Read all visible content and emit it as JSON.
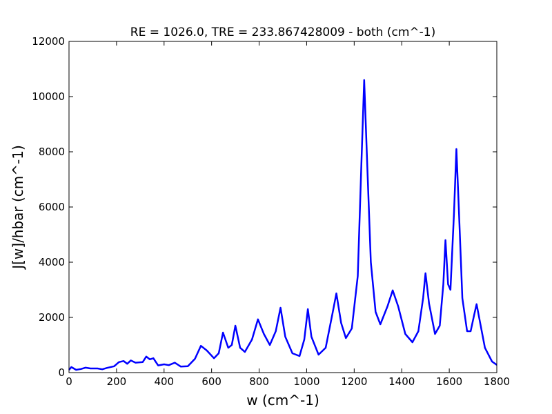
{
  "chart_data": {
    "type": "line",
    "title": "RE = 1026.0, TRE = 233.867428009 - both (cm^-1)",
    "x_label": "w (cm^-1)",
    "y_label": "J[w]/hbar (cm^-1)",
    "x": [
      0,
      10,
      30,
      50,
      70,
      90,
      120,
      140,
      160,
      190,
      210,
      230,
      245,
      260,
      280,
      310,
      325,
      340,
      355,
      375,
      400,
      420,
      445,
      470,
      500,
      530,
      555,
      580,
      610,
      630,
      648,
      670,
      685,
      700,
      720,
      740,
      770,
      795,
      820,
      845,
      870,
      890,
      910,
      940,
      970,
      990,
      1005,
      1020,
      1050,
      1080,
      1110,
      1125,
      1145,
      1165,
      1190,
      1215,
      1230,
      1242,
      1255,
      1270,
      1290,
      1310,
      1340,
      1362,
      1385,
      1415,
      1445,
      1470,
      1490,
      1500,
      1515,
      1540,
      1560,
      1575,
      1584,
      1595,
      1605,
      1620,
      1630,
      1640,
      1655,
      1675,
      1690,
      1705,
      1715,
      1730,
      1750,
      1780,
      1800
    ],
    "values": [
      100,
      200,
      100,
      130,
      180,
      150,
      150,
      120,
      170,
      230,
      380,
      420,
      320,
      440,
      360,
      380,
      580,
      480,
      520,
      260,
      300,
      270,
      360,
      220,
      230,
      500,
      970,
      800,
      520,
      700,
      1450,
      900,
      1000,
      1700,
      900,
      750,
      1200,
      1930,
      1400,
      1000,
      1500,
      2350,
      1300,
      700,
      600,
      1200,
      2300,
      1300,
      650,
      900,
      2200,
      2870,
      1800,
      1250,
      1600,
      3500,
      7500,
      10600,
      7500,
      4000,
      2200,
      1750,
      2400,
      2980,
      2400,
      1400,
      1100,
      1500,
      2700,
      3600,
      2500,
      1400,
      1700,
      3200,
      4800,
      3200,
      3000,
      5800,
      8100,
      6000,
      2700,
      1500,
      1500,
      2100,
      2480,
      1800,
      900,
      400,
      280
    ],
    "color": "#0000ff",
    "xlim": [
      0,
      1800
    ],
    "xticks": [
      0,
      200,
      400,
      600,
      800,
      1000,
      1200,
      1400,
      1600,
      1800
    ],
    "ylim": [
      0,
      12000
    ],
    "yticks": [
      0,
      2000,
      4000,
      6000,
      8000,
      10000,
      12000
    ]
  }
}
